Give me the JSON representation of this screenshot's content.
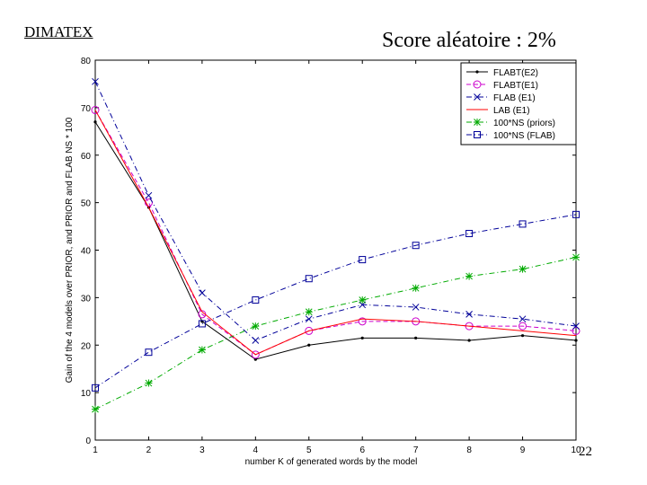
{
  "header": {
    "brand": "DIMATEX",
    "title": "Score aléatoire : 2%",
    "page_number": "22"
  },
  "chart_data": {
    "type": "line",
    "title": "Score aléatoire : 2%",
    "xlabel": "number K of generated words by the model",
    "ylabel": "Gain of the 4 models over PRIOR, and PRIOR and FLAB NS * 100",
    "x": [
      1,
      2,
      3,
      4,
      5,
      6,
      7,
      8,
      9,
      10
    ],
    "xlim": [
      1,
      10
    ],
    "ylim": [
      0,
      80
    ],
    "xticks": [
      1,
      2,
      3,
      4,
      5,
      6,
      7,
      8,
      9,
      10
    ],
    "yticks": [
      0,
      10,
      20,
      30,
      40,
      50,
      60,
      70,
      80
    ],
    "grid": false,
    "legend_position": "top-right",
    "series": [
      {
        "name": "FLABT(E2)",
        "values": [
          67,
          49,
          25,
          17,
          20,
          21.5,
          21.5,
          21,
          22,
          21
        ],
        "color": "#000000",
        "dash": "solid",
        "marker": "dot"
      },
      {
        "name": "FLABT(E1)",
        "values": [
          69.5,
          50,
          26.5,
          18,
          23,
          25,
          25,
          24,
          24,
          23
        ],
        "color": "#cc00cc",
        "dash": "dashed",
        "marker": "circle"
      },
      {
        "name": "FLAB (E1)",
        "values": [
          75.5,
          51.5,
          31,
          21,
          25.5,
          28.5,
          28,
          26.5,
          25.5,
          24
        ],
        "color": "#000099",
        "dash": "dashdot",
        "marker": "x"
      },
      {
        "name": "LAB (E1)",
        "values": [
          69.5,
          49,
          27,
          18,
          23,
          25.5,
          25,
          24,
          23,
          22
        ],
        "color": "#ff0000",
        "dash": "solid",
        "marker": "none"
      },
      {
        "name": "100*NS (priors)",
        "values": [
          6.5,
          12,
          19,
          24,
          27,
          29.5,
          32,
          34.5,
          36,
          38.5
        ],
        "color": "#00aa00",
        "dash": "dashdot",
        "marker": "star"
      },
      {
        "name": "100*NS (FLAB)",
        "values": [
          11,
          18.5,
          24.5,
          29.5,
          34,
          38,
          41,
          43.5,
          45.5,
          47.5
        ],
        "color": "#000099",
        "dash": "dashdot",
        "marker": "square"
      }
    ]
  }
}
